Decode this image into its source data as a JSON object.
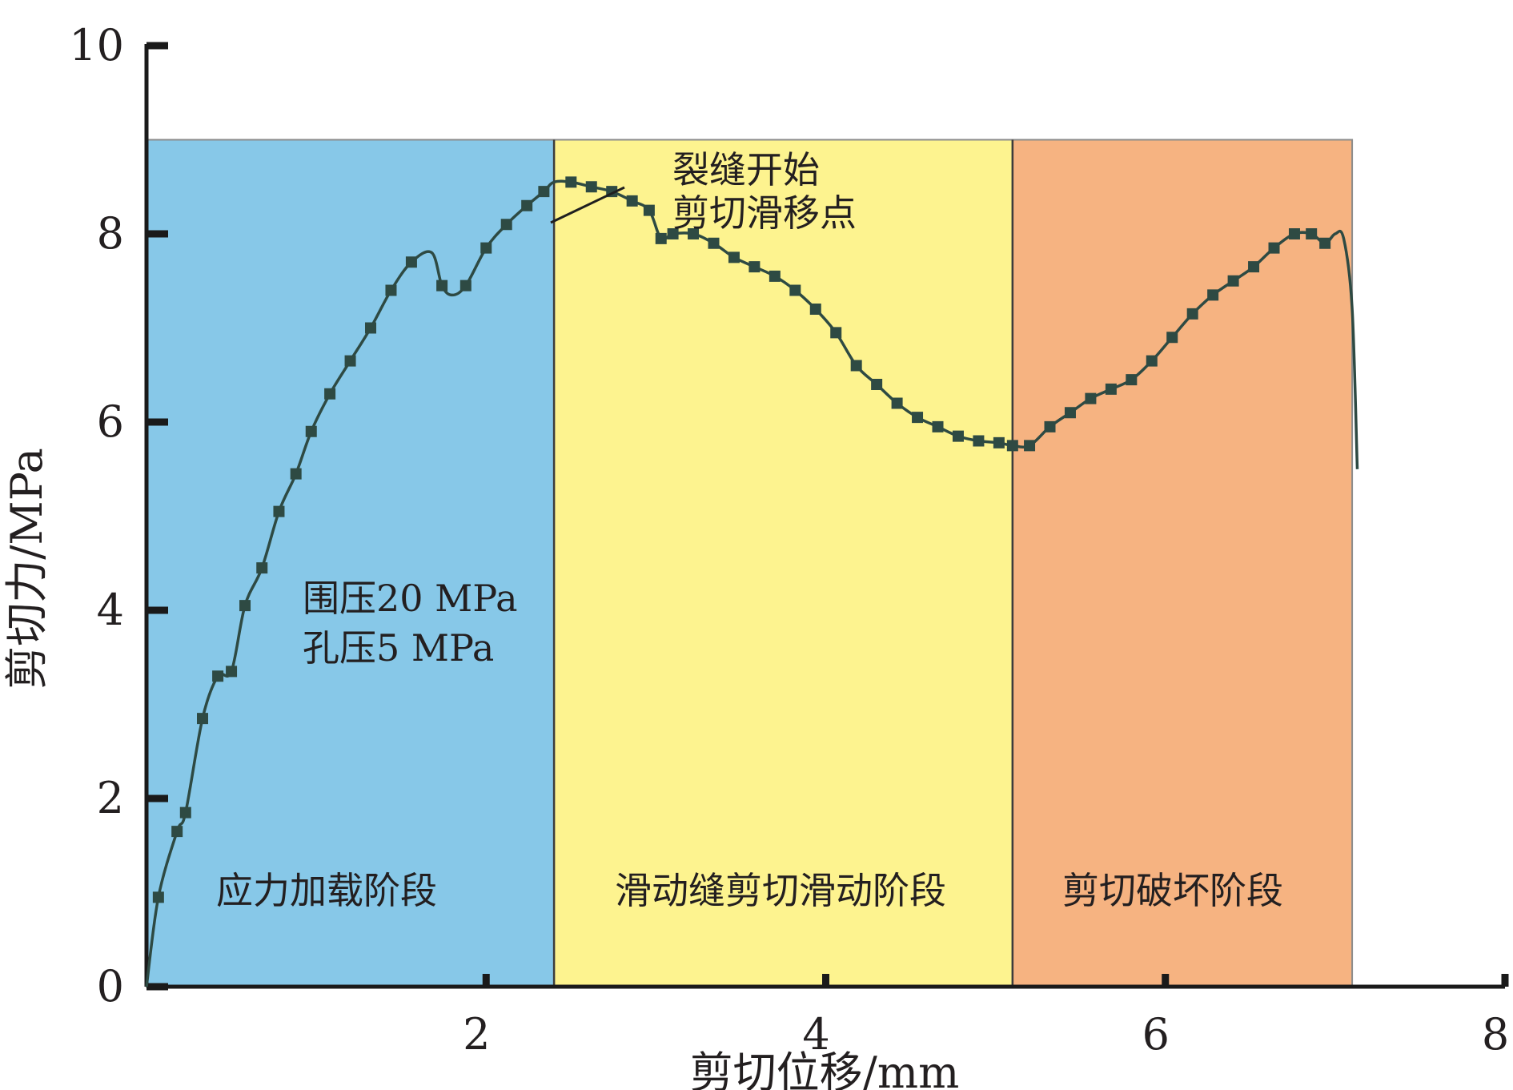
{
  "chart_data": {
    "type": "line",
    "xlabel": "剪切位移/mm",
    "ylabel": "剪切力/MPa",
    "xlim": [
      0,
      8
    ],
    "ylim": [
      0,
      10
    ],
    "x_ticks": [
      2,
      4,
      6,
      8
    ],
    "y_ticks": [
      0,
      2,
      4,
      6,
      8,
      10
    ],
    "grid": false,
    "stages": [
      {
        "label": "应力加载阶段",
        "x_start": 0,
        "x_end": 2.4,
        "color": "#87c8e8"
      },
      {
        "label": "滑动缝剪切滑动阶段",
        "x_start": 2.4,
        "x_end": 5.1,
        "color": "#fdf38f"
      },
      {
        "label": "剪切破坏阶段",
        "x_start": 5.1,
        "x_end": 7.1,
        "color": "#f6b381"
      }
    ],
    "stage_band_top": 9.0,
    "annotations": {
      "condition_lines": [
        "围压20 MPa",
        "孔压5 MPa"
      ],
      "crack_lines": [
        "裂缝开始",
        "剪切滑移点"
      ],
      "crack_point": {
        "x": 2.4,
        "y": 8.55
      }
    },
    "series": [
      {
        "color": "#2e4a43",
        "x": [
          0.0,
          0.07,
          0.18,
          0.23,
          0.33,
          0.42,
          0.5,
          0.58,
          0.68,
          0.78,
          0.88,
          0.97,
          1.08,
          1.2,
          1.32,
          1.44,
          1.56,
          1.68,
          1.74,
          1.8,
          1.88,
          2.0,
          2.12,
          2.24,
          2.34,
          2.4,
          2.5,
          2.62,
          2.74,
          2.86,
          2.96,
          3.03,
          3.1,
          3.22,
          3.34,
          3.46,
          3.58,
          3.7,
          3.82,
          3.94,
          4.06,
          4.18,
          4.3,
          4.42,
          4.54,
          4.66,
          4.78,
          4.9,
          5.02,
          5.1,
          5.2,
          5.32,
          5.44,
          5.56,
          5.68,
          5.8,
          5.92,
          6.04,
          6.16,
          6.28,
          6.4,
          6.52,
          6.64,
          6.76,
          6.86,
          6.94,
          7.0,
          7.05,
          7.1,
          7.13
        ],
        "y": [
          0.0,
          0.95,
          1.65,
          1.85,
          2.85,
          3.3,
          3.35,
          4.05,
          4.45,
          5.05,
          5.45,
          5.9,
          6.3,
          6.65,
          7.0,
          7.4,
          7.7,
          7.8,
          7.45,
          7.35,
          7.45,
          7.85,
          8.1,
          8.3,
          8.45,
          8.55,
          8.55,
          8.5,
          8.45,
          8.35,
          8.25,
          7.95,
          8.0,
          8.0,
          7.9,
          7.75,
          7.65,
          7.55,
          7.4,
          7.2,
          6.95,
          6.6,
          6.4,
          6.2,
          6.05,
          5.95,
          5.85,
          5.8,
          5.78,
          5.75,
          5.75,
          5.95,
          6.1,
          6.25,
          6.35,
          6.45,
          6.65,
          6.9,
          7.15,
          7.35,
          7.5,
          7.65,
          7.85,
          8.0,
          8.0,
          7.9,
          8.0,
          7.95,
          7.2,
          5.5
        ],
        "marker_indices": [
          1,
          2,
          3,
          4,
          5,
          6,
          7,
          8,
          9,
          10,
          11,
          12,
          13,
          14,
          15,
          16,
          18,
          20,
          21,
          22,
          23,
          24,
          26,
          27,
          28,
          29,
          30,
          31,
          32,
          33,
          34,
          35,
          36,
          37,
          38,
          39,
          40,
          41,
          42,
          43,
          44,
          45,
          46,
          47,
          48,
          49,
          50,
          51,
          52,
          53,
          54,
          55,
          56,
          57,
          58,
          59,
          60,
          61,
          62,
          63,
          64,
          65
        ]
      }
    ]
  }
}
